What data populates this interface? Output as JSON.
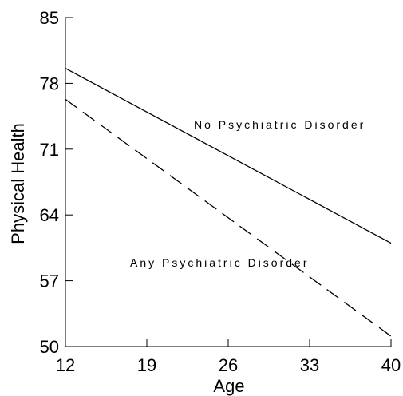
{
  "chart_data": {
    "type": "line",
    "xlabel": "Age",
    "ylabel": "Physical Health",
    "xlim": [
      12,
      40
    ],
    "ylim": [
      50,
      85
    ],
    "xticks": [
      12,
      19,
      26,
      33,
      40
    ],
    "yticks": [
      50,
      57,
      64,
      71,
      78,
      85
    ],
    "grid": false,
    "series": [
      {
        "name": "No Psychiatric Disorder",
        "style": "solid",
        "color": "#000000",
        "x": [
          12,
          40
        ],
        "y": [
          79.6,
          61.0
        ]
      },
      {
        "name": "Any Psychiatric Disorder",
        "style": "dashed",
        "color": "#000000",
        "x": [
          12,
          40
        ],
        "y": [
          76.3,
          51.1
        ]
      }
    ]
  }
}
